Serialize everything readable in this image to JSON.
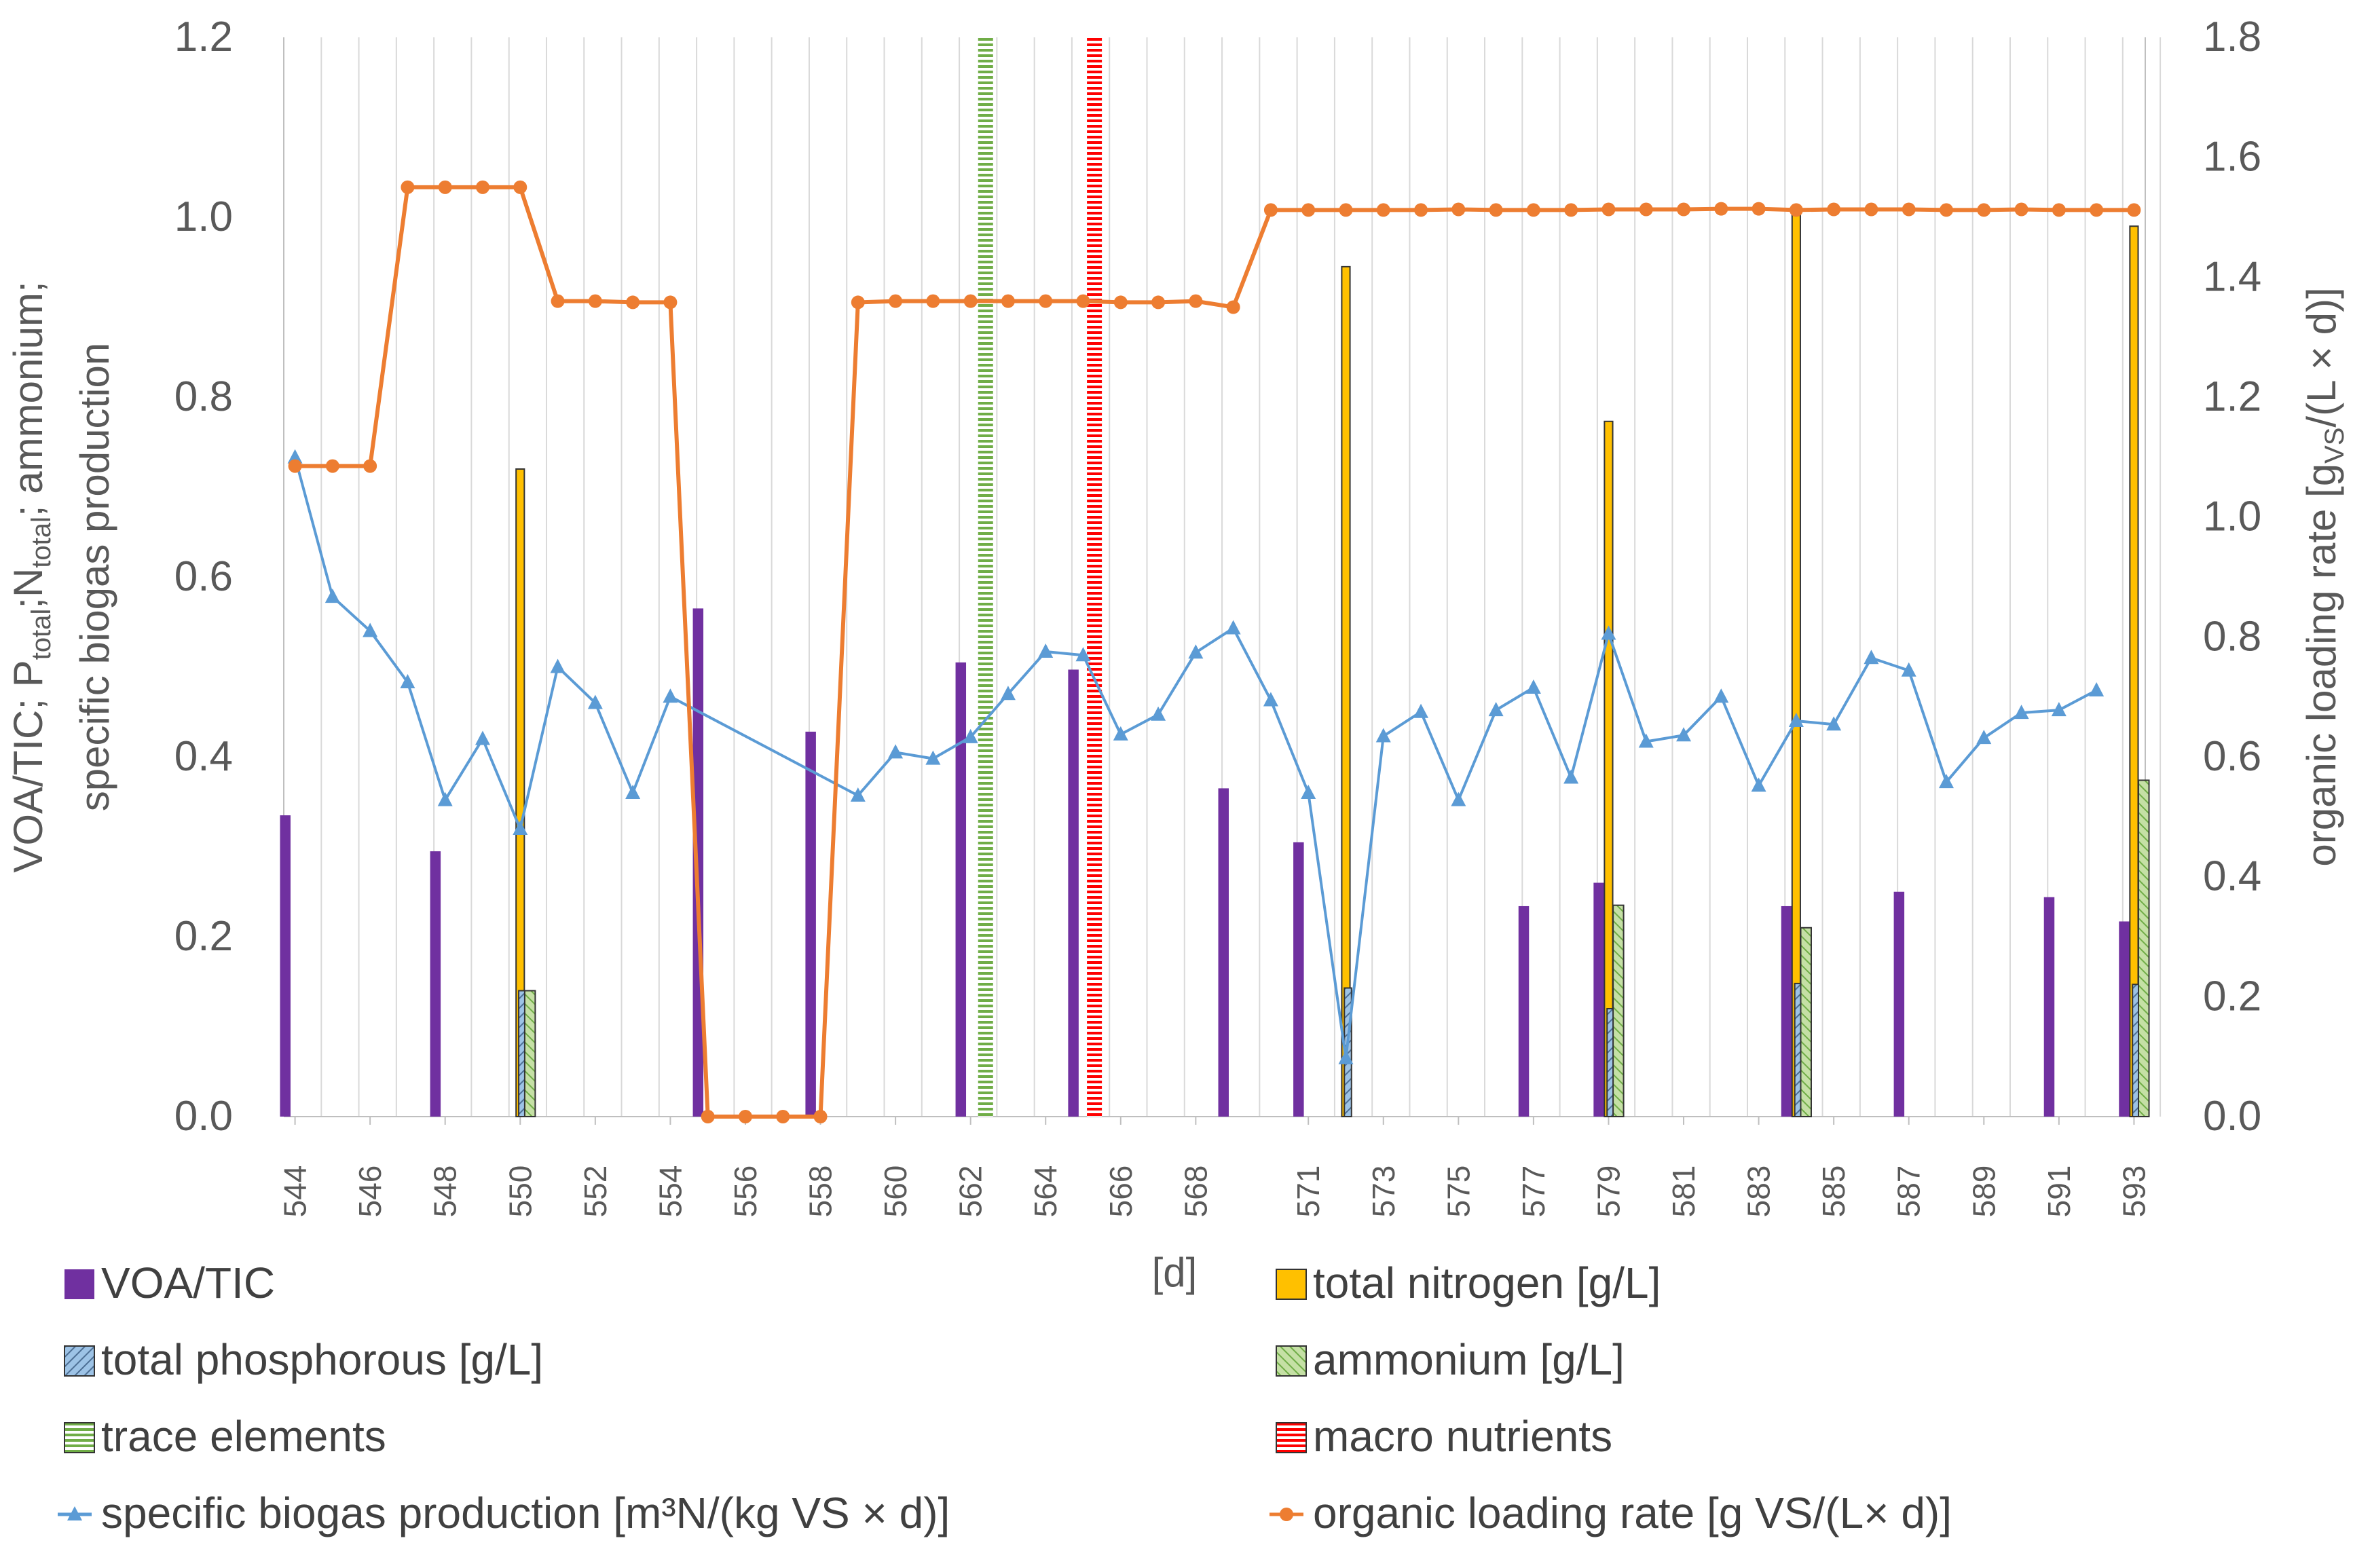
{
  "chart_data": {
    "type": "bar",
    "y_left": {
      "label_parts": [
        {
          "text": "VOA/TIC; P",
          "sub": false
        },
        {
          "text": "total",
          "sub": true
        },
        {
          "text": ";N",
          "sub": false
        },
        {
          "text": "total",
          "sub": true
        },
        {
          "text": "; ammonium;",
          "sub": false
        }
      ],
      "label_line2": "specific biogas production",
      "range": [
        0,
        1.2
      ],
      "ticks": [
        "0.0",
        "0.2",
        "0.4",
        "0.6",
        "0.8",
        "1.0",
        "1.2"
      ]
    },
    "y_right": {
      "label_parts": [
        {
          "text": "organic loading rate [g",
          "sub": false
        },
        {
          "text": "VS",
          "sub": true
        },
        {
          "text": "/(L × d)]",
          "sub": false
        }
      ],
      "range": [
        0,
        1.8
      ],
      "ticks": [
        "0.0",
        "0.2",
        "0.4",
        "0.6",
        "0.8",
        "1.0",
        "1.2",
        "1.4",
        "1.6",
        "1.8"
      ]
    },
    "x_axis": {
      "label": "[d]",
      "categories": [
        "544",
        "545",
        "546",
        "547",
        "548",
        "549",
        "550",
        "551",
        "552",
        "553",
        "554",
        "555",
        "556",
        "557",
        "558",
        "559",
        "560",
        "561",
        "562",
        "563",
        "564",
        "565",
        "566",
        "567",
        "568",
        "569",
        "570",
        "571",
        "572",
        "573",
        "574",
        "575",
        "576",
        "577",
        "578",
        "579",
        "580",
        "581",
        "582",
        "583",
        "584",
        "585",
        "586",
        "587",
        "588",
        "589",
        "590",
        "591",
        "592",
        "593"
      ],
      "tick_labels": [
        "544",
        "546",
        "548",
        "550",
        "552",
        "554",
        "556",
        "558",
        "560",
        "562",
        "564",
        "566",
        "568",
        "571",
        "573",
        "575",
        "577",
        "579",
        "581",
        "583",
        "585",
        "587",
        "589",
        "591",
        "593"
      ]
    },
    "series": [
      {
        "name": "VOA/TIC",
        "kind": "bar",
        "axis": "left",
        "color": "#7030a0",
        "points": [
          [
            544,
            0.335
          ],
          [
            548,
            0.295
          ],
          [
            555,
            0.565
          ],
          [
            558,
            0.428
          ],
          [
            562,
            0.505
          ],
          [
            565,
            0.497
          ],
          [
            569,
            0.365
          ],
          [
            571,
            0.305
          ],
          [
            577,
            0.234
          ],
          [
            579,
            0.26
          ],
          [
            584,
            0.234
          ],
          [
            587,
            0.25
          ],
          [
            591,
            0.244
          ],
          [
            593,
            0.217
          ]
        ]
      },
      {
        "name": "total nitrogen [g/L]",
        "kind": "bar",
        "axis": "left",
        "color": "#ffc000",
        "points": [
          [
            550,
            0.72
          ],
          [
            572,
            0.945
          ],
          [
            579,
            0.773
          ],
          [
            584,
            1.003
          ],
          [
            593,
            0.99
          ]
        ]
      },
      {
        "name": "total phosphorous [g/L]",
        "kind": "bar",
        "axis": "left",
        "color": "#9dc3e6",
        "pattern": "diagonal-hatch",
        "points": [
          [
            550,
            0.14
          ],
          [
            572,
            0.143
          ],
          [
            579,
            0.12
          ],
          [
            584,
            0.148
          ],
          [
            593,
            0.147
          ]
        ]
      },
      {
        "name": "ammonium [g/L]",
        "kind": "bar",
        "axis": "left",
        "color": "#92d050",
        "pattern": "diagonal-hatch",
        "points": [
          [
            550,
            0.14
          ],
          [
            579,
            0.235
          ],
          [
            584,
            0.21
          ],
          [
            593,
            0.374
          ]
        ]
      },
      {
        "name": "trace elements",
        "kind": "vline",
        "color": "#70ad47",
        "pattern": "horizontal-lines",
        "points": [
          [
            562.4,
            1.2
          ]
        ]
      },
      {
        "name": "macro nutrients",
        "kind": "vline",
        "color": "#ff0000",
        "pattern": "horizontal-lines",
        "points": [
          [
            565.3,
            1.2
          ]
        ]
      },
      {
        "name": "specific biogas production [m³N/(kg VS × d)]",
        "kind": "line",
        "axis": "left",
        "color": "#5b9bd5",
        "marker": "triangle",
        "points": [
          [
            544,
            0.733
          ],
          [
            545,
            0.578
          ],
          [
            546,
            0.54
          ],
          [
            547,
            0.483
          ],
          [
            548,
            0.352
          ],
          [
            549,
            0.42
          ],
          [
            550,
            0.32
          ],
          [
            551,
            0.5
          ],
          [
            552,
            0.46
          ],
          [
            553,
            0.36
          ],
          [
            554,
            0.467
          ],
          [
            559,
            0.357
          ],
          [
            560,
            0.405
          ],
          [
            561,
            0.398
          ],
          [
            562,
            0.422
          ],
          [
            563,
            0.47
          ],
          [
            564,
            0.517
          ],
          [
            565,
            0.513
          ],
          [
            566,
            0.425
          ],
          [
            567,
            0.447
          ],
          [
            568,
            0.516
          ],
          [
            569,
            0.543
          ],
          [
            570,
            0.463
          ],
          [
            571,
            0.36
          ],
          [
            572,
            0.065
          ],
          [
            573,
            0.423
          ],
          [
            574,
            0.45
          ],
          [
            575,
            0.352
          ],
          [
            576,
            0.452
          ],
          [
            577,
            0.477
          ],
          [
            578,
            0.377
          ],
          [
            579,
            0.537
          ],
          [
            580,
            0.417
          ],
          [
            581,
            0.424
          ],
          [
            582,
            0.467
          ],
          [
            583,
            0.368
          ],
          [
            584,
            0.44
          ],
          [
            585,
            0.436
          ],
          [
            586,
            0.51
          ],
          [
            587,
            0.496
          ],
          [
            588,
            0.372
          ],
          [
            589,
            0.421
          ],
          [
            590,
            0.449
          ],
          [
            591,
            0.452
          ],
          [
            592,
            0.474
          ]
        ]
      },
      {
        "name": "organic loading rate [g VS/(L× d)]",
        "kind": "line",
        "axis": "right",
        "color": "#ed7d31",
        "marker": "circle",
        "points": [
          [
            544,
            1.085
          ],
          [
            545,
            1.085
          ],
          [
            546,
            1.085
          ],
          [
            547,
            1.55
          ],
          [
            548,
            1.55
          ],
          [
            549,
            1.55
          ],
          [
            550,
            1.55
          ],
          [
            551,
            1.36
          ],
          [
            552,
            1.36
          ],
          [
            553,
            1.358
          ],
          [
            554,
            1.358
          ],
          [
            555,
            0
          ],
          [
            556,
            0
          ],
          [
            557,
            0
          ],
          [
            558,
            0
          ],
          [
            559,
            1.358
          ],
          [
            560,
            1.36
          ],
          [
            561,
            1.36
          ],
          [
            562,
            1.36
          ],
          [
            563,
            1.36
          ],
          [
            564,
            1.36
          ],
          [
            565,
            1.36
          ],
          [
            566,
            1.358
          ],
          [
            567,
            1.358
          ],
          [
            568,
            1.36
          ],
          [
            569,
            1.35
          ],
          [
            570,
            1.512
          ],
          [
            571,
            1.512
          ],
          [
            572,
            1.512
          ],
          [
            573,
            1.512
          ],
          [
            574,
            1.512
          ],
          [
            575,
            1.513
          ],
          [
            576,
            1.512
          ],
          [
            577,
            1.512
          ],
          [
            578,
            1.512
          ],
          [
            579,
            1.513
          ],
          [
            580,
            1.513
          ],
          [
            581,
            1.513
          ],
          [
            582,
            1.514
          ],
          [
            583,
            1.514
          ],
          [
            584,
            1.512
          ],
          [
            585,
            1.513
          ],
          [
            586,
            1.513
          ],
          [
            587,
            1.513
          ],
          [
            588,
            1.512
          ],
          [
            589,
            1.512
          ],
          [
            590,
            1.513
          ],
          [
            591,
            1.512
          ],
          [
            592,
            1.512
          ],
          [
            593,
            1.512
          ]
        ]
      }
    ],
    "legend": {
      "placement": "bottom",
      "entries": [
        "VOA/TIC",
        "total nitrogen [g/L]",
        "total phosphorous [g/L]",
        "ammonium [g/L]",
        "trace elements",
        "macro nutrients",
        "specific biogas production [m³N/(kg VS × d)]",
        "organic loading rate [g VS/(L× d)]"
      ]
    },
    "grid": {
      "vertical": true,
      "horizontal": false
    }
  }
}
